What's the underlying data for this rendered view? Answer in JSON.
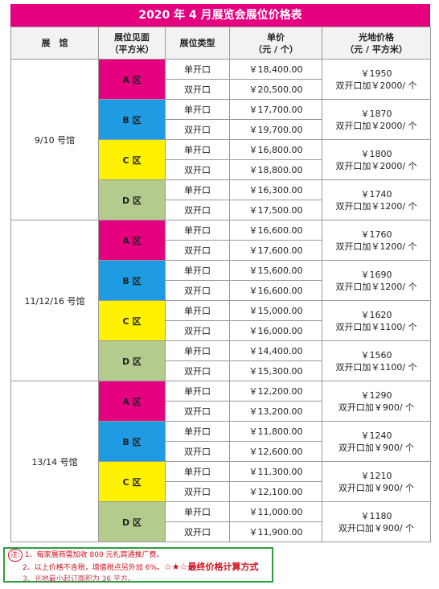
{
  "title": "2020 年 4 月展览会展位价格表",
  "header": [
    [
      "展　馆"
    ],
    [
      "展位见面",
      "（平方米）"
    ],
    [
      "展位类型"
    ],
    [
      "单价",
      "（元 / 个）"
    ],
    [
      "光地价格",
      "（元 / 平方米）"
    ]
  ],
  "halls": [
    {
      "name": "9/10 号馆",
      "zones": [
        {
          "zone": "A 区",
          "rows": [
            {
              "type": "单开口",
              "price": "￥18,400.00"
            },
            {
              "type": "双开口",
              "price": "￥20,500.00"
            }
          ],
          "light": "￥1950",
          "extra": "双开口加￥2000/ 个"
        },
        {
          "zone": "B 区",
          "rows": [
            {
              "type": "单开口",
              "price": "￥17,700.00"
            },
            {
              "type": "双开口",
              "price": "￥19,700.00"
            }
          ],
          "light": "￥1870",
          "extra": "双开口加￥2000/ 个"
        },
        {
          "zone": "C 区",
          "rows": [
            {
              "type": "单开口",
              "price": "￥16,800.00"
            },
            {
              "type": "双开口",
              "price": "￥18,800.00"
            }
          ],
          "light": "￥1800",
          "extra": "双开口加￥2000/ 个"
        },
        {
          "zone": "D 区",
          "rows": [
            {
              "type": "单开口",
              "price": "￥16,300.00"
            },
            {
              "type": "双开口",
              "price": "￥17,500.00"
            }
          ],
          "light": "￥1740",
          "extra": "双开口加￥1200/ 个"
        }
      ]
    },
    {
      "name": "11/12/16 号馆",
      "zones": [
        {
          "zone": "A 区",
          "rows": [
            {
              "type": "单开口",
              "price": "￥16,600.00"
            },
            {
              "type": "双开口",
              "price": "￥17,600.00"
            }
          ],
          "light": "￥1760",
          "extra": "双开口加￥1200/ 个"
        },
        {
          "zone": "B 区",
          "rows": [
            {
              "type": "单开口",
              "price": "￥15,600.00"
            },
            {
              "type": "双开口",
              "price": "￥16,600.00"
            }
          ],
          "light": "￥1690",
          "extra": "双开口加￥1200/ 个"
        },
        {
          "zone": "C 区",
          "rows": [
            {
              "type": "单开口",
              "price": "￥15,000.00"
            },
            {
              "type": "双开口",
              "price": "￥16,000.00"
            }
          ],
          "light": "￥1620",
          "extra": "双开口加￥1100/ 个"
        },
        {
          "zone": "D 区",
          "rows": [
            {
              "type": "单开口",
              "price": "￥14,400.00"
            },
            {
              "type": "双开口",
              "price": "￥15,300.00"
            }
          ],
          "light": "￥1560",
          "extra": "双开口加￥1100/ 个"
        }
      ]
    },
    {
      "name": "13/14 号馆",
      "zones": [
        {
          "zone": "A 区",
          "rows": [
            {
              "type": "单开口",
              "price": "￥12,200.00"
            },
            {
              "type": "双开口",
              "price": "￥13,200.00"
            }
          ],
          "light": "￥1290",
          "extra": "双开口加￥900/ 个"
        },
        {
          "zone": "B 区",
          "rows": [
            {
              "type": "单开口",
              "price": "￥11,800.00"
            },
            {
              "type": "双开口",
              "price": "￥12,600.00"
            }
          ],
          "light": "￥1240",
          "extra": "双开口加￥900/ 个"
        },
        {
          "zone": "C 区",
          "rows": [
            {
              "type": "单开口",
              "price": "￥11,300.00"
            },
            {
              "type": "双开口",
              "price": "￥12,100.00"
            }
          ],
          "light": "￥1210",
          "extra": "双开口加￥900/ 个"
        },
        {
          "zone": "D 区",
          "rows": [
            {
              "type": "单开口",
              "price": "￥11,000.00"
            },
            {
              "type": "双开口",
              "price": "￥11,900.00"
            }
          ],
          "light": "￥1180",
          "extra": "双开口加￥900/ 个"
        }
      ]
    }
  ],
  "notes": {
    "label": "注:",
    "lines": [
      "1、每家展商需加收 800 元礼宾通推广费。",
      "2、以上价格不含税，增值税点另外加 6%。",
      "3、光地最小起订面积为 36 平方。"
    ],
    "annotation": "☆★☆最终价格计算方式"
  }
}
